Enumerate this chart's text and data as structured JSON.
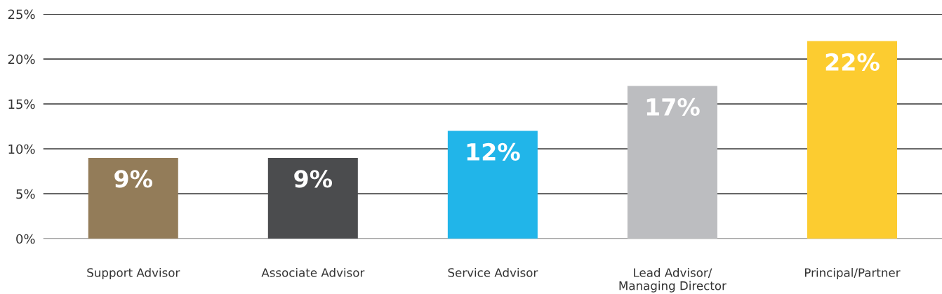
{
  "chart_data": {
    "type": "bar",
    "categories": [
      "Support Advisor",
      "Associate Advisor",
      "Service Advisor",
      "Lead Advisor/\nManaging Director",
      "Principal/Partner"
    ],
    "values": [
      9,
      9,
      12,
      17,
      22
    ],
    "colors": [
      "#937c59",
      "#4b4c4e",
      "#21b5e9",
      "#bcbdc0",
      "#fccc30"
    ],
    "value_labels": [
      "9%",
      "9%",
      "12%",
      "17%",
      "22%"
    ],
    "ylim": [
      0,
      25
    ],
    "yticks": [
      {
        "value": 0,
        "label": "0%"
      },
      {
        "value": 5,
        "label": "5%"
      },
      {
        "value": 10,
        "label": "10%"
      },
      {
        "value": 15,
        "label": "15%"
      },
      {
        "value": 20,
        "label": "20%"
      },
      {
        "value": 25,
        "label": "25%"
      }
    ],
    "grid": "y"
  }
}
